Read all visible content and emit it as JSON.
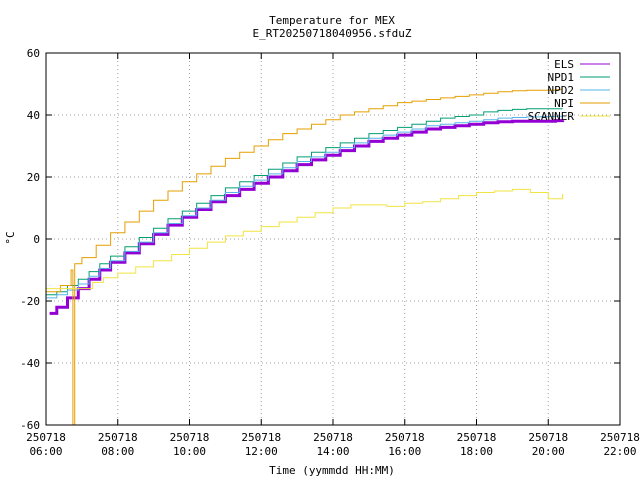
{
  "chart_data": {
    "type": "line",
    "title": "Temperature for MEX",
    "subtitle": "E_RT20250718040956.sfduZ",
    "xlabel": "Time (yymmdd HH:MM)",
    "ylabel": "°C",
    "ylim": [
      -60,
      60
    ],
    "xlim_hours": [
      6,
      22
    ],
    "grid": true,
    "legend_position": "top-right",
    "x_ticks": [
      {
        "date": "250718",
        "time": "06:00",
        "hour": 6
      },
      {
        "date": "250718",
        "time": "08:00",
        "hour": 8
      },
      {
        "date": "250718",
        "time": "10:00",
        "hour": 10
      },
      {
        "date": "250718",
        "time": "12:00",
        "hour": 12
      },
      {
        "date": "250718",
        "time": "14:00",
        "hour": 14
      },
      {
        "date": "250718",
        "time": "16:00",
        "hour": 16
      },
      {
        "date": "250718",
        "time": "18:00",
        "hour": 18
      },
      {
        "date": "250718",
        "time": "20:00",
        "hour": 20
      },
      {
        "date": "250718",
        "time": "22:00",
        "hour": 22
      }
    ],
    "y_ticks": [
      60,
      40,
      20,
      0,
      -20,
      -40,
      -60
    ],
    "series": [
      {
        "name": "ELS",
        "color": "#9400d3",
        "stroke_width": 3,
        "x": [
          6.1,
          6.3,
          6.6,
          6.9,
          7.2,
          7.5,
          7.8,
          8.2,
          8.6,
          9.0,
          9.4,
          9.8,
          10.2,
          10.6,
          11.0,
          11.4,
          11.8,
          12.2,
          12.6,
          13.0,
          13.4,
          13.8,
          14.2,
          14.6,
          15.0,
          15.4,
          15.8,
          16.2,
          16.6,
          17.0,
          17.4,
          17.8,
          18.2,
          18.6,
          19.0,
          19.4,
          19.8,
          20.2,
          20.4
        ],
        "y": [
          -24,
          -22,
          -19,
          -16,
          -13,
          -10,
          -7.5,
          -4.5,
          -1.5,
          1.5,
          4.5,
          7,
          9.5,
          12,
          14,
          16,
          18,
          20,
          22,
          24,
          25.5,
          27,
          28.5,
          30,
          31.5,
          32.5,
          33.5,
          34.5,
          35.5,
          36,
          36.5,
          37,
          37.5,
          37.8,
          38,
          38,
          38,
          38.2,
          38.3
        ]
      },
      {
        "name": "NPD1",
        "color": "#009e73",
        "stroke_width": 1,
        "x": [
          6.0,
          6.3,
          6.6,
          6.9,
          7.2,
          7.5,
          7.8,
          8.2,
          8.6,
          9.0,
          9.4,
          9.8,
          10.2,
          10.6,
          11.0,
          11.4,
          11.8,
          12.2,
          12.6,
          13.0,
          13.4,
          13.8,
          14.2,
          14.6,
          15.0,
          15.4,
          15.8,
          16.2,
          16.6,
          17.0,
          17.4,
          17.8,
          18.2,
          18.6,
          19.0,
          19.4,
          19.8,
          20.2,
          20.4
        ],
        "y": [
          -18,
          -17,
          -15,
          -13,
          -10.5,
          -8,
          -5.5,
          -2.5,
          0.5,
          3.5,
          6.5,
          9,
          11.5,
          14,
          16.5,
          18.5,
          20.5,
          22.5,
          24.5,
          26.5,
          28,
          29.5,
          31,
          32.5,
          34,
          35,
          36,
          37,
          38,
          39,
          39.5,
          40,
          41,
          41.5,
          41.8,
          42,
          42,
          42,
          42
        ]
      },
      {
        "name": "NPD2",
        "color": "#56b4e9",
        "stroke_width": 1,
        "x": [
          6.0,
          6.3,
          6.6,
          6.9,
          7.2,
          7.5,
          7.8,
          8.2,
          8.6,
          9.0,
          9.4,
          9.8,
          10.2,
          10.6,
          11.0,
          11.4,
          11.8,
          12.2,
          12.6,
          13.0,
          13.4,
          13.8,
          14.2,
          14.6,
          15.0,
          15.4,
          15.8,
          16.2,
          16.6,
          17.0,
          17.4,
          17.8,
          18.2,
          18.6,
          19.0,
          19.4,
          19.8,
          20.2,
          20.4
        ],
        "y": [
          -19,
          -18,
          -16.5,
          -14.5,
          -12,
          -9.5,
          -7,
          -4,
          -1,
          2,
          5,
          7.5,
          10,
          12.5,
          15,
          17,
          19,
          21,
          23,
          25,
          26.5,
          28,
          29.5,
          31,
          32.5,
          33.5,
          34.5,
          35.5,
          36.5,
          37,
          37.5,
          38,
          38.5,
          39,
          39.2,
          39.4,
          39.5,
          39.6,
          39.6
        ]
      },
      {
        "name": "NPI",
        "color": "#e69f00",
        "stroke_width": 1,
        "x": [
          6.0,
          6.4,
          6.7,
          6.75,
          6.8,
          7.0,
          7.4,
          7.8,
          8.2,
          8.6,
          9.0,
          9.4,
          9.8,
          10.2,
          10.6,
          11.0,
          11.4,
          11.8,
          12.2,
          12.6,
          13.0,
          13.4,
          13.8,
          14.2,
          14.6,
          15.0,
          15.4,
          15.8,
          16.2,
          16.6,
          17.0,
          17.4,
          17.8,
          18.2,
          18.6,
          19.0,
          19.4,
          19.8,
          20.2,
          20.4
        ],
        "y": [
          -17,
          -15,
          -10,
          -60,
          -8,
          -6,
          -2,
          2,
          5.5,
          9,
          12.5,
          15.5,
          18.5,
          21,
          23.5,
          26,
          28,
          30,
          32,
          34,
          35.5,
          37,
          38.5,
          40,
          41,
          42,
          43,
          44,
          44.5,
          45,
          45.5,
          46,
          46.5,
          47,
          47.5,
          47.8,
          48,
          48,
          48.2,
          48.2
        ]
      },
      {
        "name": "SCANNER",
        "color": "#f0e442",
        "stroke_width": 1,
        "x": [
          6.0,
          6.5,
          7.0,
          7.3,
          7.6,
          8.0,
          8.5,
          9.0,
          9.5,
          10.0,
          10.5,
          11.0,
          11.5,
          12.0,
          12.5,
          13.0,
          13.5,
          14.0,
          14.5,
          15.0,
          15.5,
          16.0,
          16.5,
          17.0,
          17.5,
          18.0,
          18.5,
          19.0,
          19.5,
          20.0,
          20.4
        ],
        "y": [
          -16,
          -16,
          -16,
          -14,
          -12.5,
          -11,
          -9,
          -7,
          -5,
          -3,
          -1,
          1,
          2.5,
          4,
          5.5,
          7,
          8.5,
          10,
          11,
          11,
          10.5,
          11.5,
          12,
          13,
          14,
          15,
          15.5,
          16,
          15,
          13,
          14.5
        ]
      }
    ]
  }
}
